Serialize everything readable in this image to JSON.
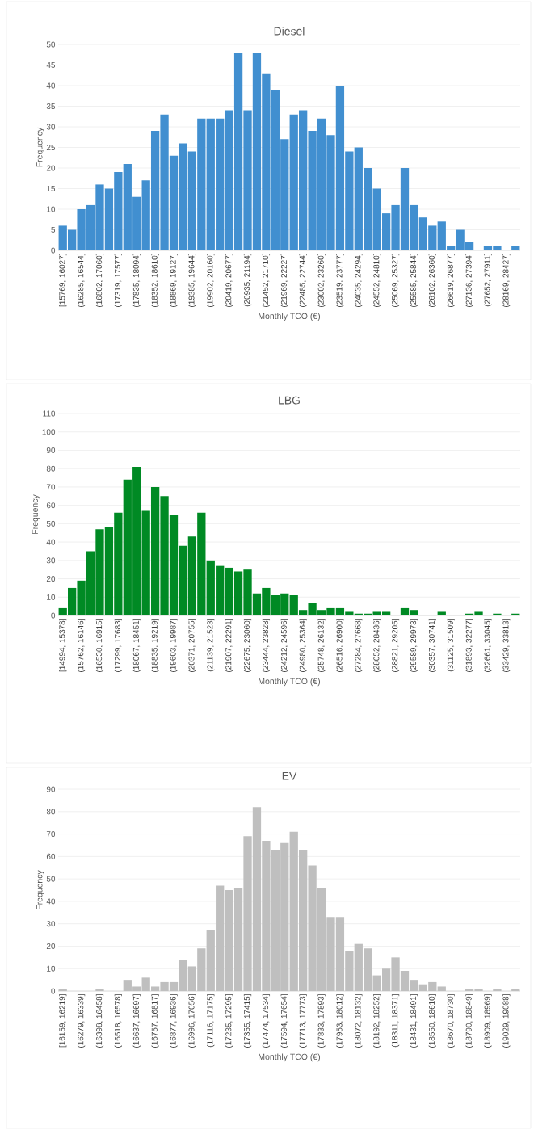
{
  "chart_data": [
    {
      "type": "bar",
      "title": "Diesel",
      "xlabel": "Monthly TCO (€)",
      "ylabel": "Frequency",
      "color": "#418fd0",
      "grid": "y",
      "ylim": [
        0,
        50
      ],
      "yticks": [
        0,
        5,
        10,
        15,
        20,
        25,
        30,
        35,
        40,
        45,
        50
      ],
      "categories": [
        "[15769, 16027]",
        null,
        "(16285, 16544]",
        null,
        "(16802, 17060]",
        null,
        "(17319, 17577]",
        null,
        "(17835, 18094]",
        null,
        "(18352, 18610]",
        null,
        "(18869, 19127]",
        null,
        "(19385, 19644]",
        null,
        "(19902, 20160]",
        null,
        "(20419, 20677]",
        null,
        "(20935, 21194]",
        null,
        "(21452, 21710]",
        null,
        "(21969, 22227]",
        null,
        "(22485, 22744]",
        null,
        "(23002, 23260]",
        null,
        "(23519, 23777]",
        null,
        "(24035, 24294]",
        null,
        "(24552, 24810]",
        null,
        "(25069, 25327]",
        null,
        "(25585, 25844]",
        null,
        "(26102, 26360]",
        null,
        "(26619, 26877]",
        null,
        "(27136, 27394]",
        null,
        "(27652, 27911]",
        null,
        "(28169, 28427]",
        null
      ],
      "values": [
        6,
        5,
        10,
        11,
        16,
        15,
        19,
        21,
        13,
        17,
        29,
        33,
        23,
        26,
        24,
        32,
        32,
        32,
        34,
        48,
        34,
        48,
        43,
        39,
        27,
        33,
        34,
        29,
        32,
        28,
        40,
        24,
        25,
        20,
        15,
        9,
        11,
        20,
        11,
        8,
        6,
        7,
        1,
        5,
        2,
        0,
        1,
        1,
        0,
        1
      ]
    },
    {
      "type": "bar",
      "title": "LBG",
      "xlabel": "Monthly TCO (€)",
      "ylabel": "Frequency",
      "color": "#008a24",
      "grid": "y",
      "ylim": [
        0,
        110
      ],
      "yticks": [
        0,
        10,
        20,
        30,
        40,
        50,
        60,
        70,
        80,
        90,
        100,
        110
      ],
      "categories": [
        "[14994, 15378]",
        null,
        "(15762, 16146]",
        null,
        "(16530, 16915]",
        null,
        "(17299, 17683]",
        null,
        "(18067, 18451]",
        null,
        "(18835, 19219]",
        null,
        "(19603, 19987]",
        null,
        "(20371, 20755]",
        null,
        "(21139, 21523]",
        null,
        "(21907, 22291]",
        null,
        "(22675, 23060]",
        null,
        "(23444, 23828]",
        null,
        "(24212, 24596]",
        null,
        "(24980, 25364]",
        null,
        "(25748, 26132]",
        null,
        "(26516, 26900]",
        null,
        "(27284, 27668]",
        null,
        "(28052, 28436]",
        null,
        "(28821, 29205]",
        null,
        "(29589, 29973]",
        null,
        "(30357, 30741]",
        null,
        "(31125, 31509]",
        null,
        "(31893, 32277]",
        null,
        "(32661, 33045]",
        null,
        "(33429, 33813]",
        null
      ],
      "values": [
        4,
        15,
        19,
        35,
        47,
        48,
        56,
        74,
        81,
        57,
        70,
        65,
        55,
        38,
        43,
        56,
        30,
        27,
        26,
        24,
        25,
        12,
        15,
        11,
        12,
        11,
        3,
        7,
        3,
        4,
        4,
        2,
        1,
        1,
        2,
        2,
        0,
        4,
        3,
        0,
        0,
        2,
        0,
        0,
        1,
        2,
        0,
        1,
        0,
        1
      ]
    },
    {
      "type": "bar",
      "title": "EV",
      "xlabel": "Monthly TCO (€)",
      "ylabel": "Frequency",
      "color": "#bfbfbf",
      "grid": "y",
      "ylim": [
        0,
        90
      ],
      "yticks": [
        0,
        10,
        20,
        30,
        40,
        50,
        60,
        70,
        80,
        90
      ],
      "categories": [
        "[16159, 16219]",
        null,
        "(16279, 16339]",
        null,
        "(16398, 16458]",
        null,
        "(16518, 16578]",
        null,
        "(16637, 16697]",
        null,
        "(16757, 16817]",
        null,
        "(16877, 16936]",
        null,
        "(16996, 17056]",
        null,
        "(17116, 17175]",
        null,
        "(17235, 17295]",
        null,
        "(17355, 17415]",
        null,
        "(17474, 17534]",
        null,
        "(17594, 17654]",
        null,
        "(17713, 17773]",
        null,
        "(17833, 17893]",
        null,
        "(17953, 18012]",
        null,
        "(18072, 18132]",
        null,
        "(18192, 18252]",
        null,
        "(18311, 18371]",
        null,
        "(18431, 18491]",
        null,
        "(18550, 18610]",
        null,
        "(18670, 18730]",
        null,
        "(18790, 18849]",
        null,
        "(18909, 18969]",
        null,
        "(19029, 19088]",
        null
      ],
      "values": [
        1,
        0,
        0,
        0,
        1,
        0,
        0,
        5,
        2,
        6,
        2,
        4,
        4,
        14,
        11,
        19,
        27,
        47,
        45,
        46,
        69,
        82,
        67,
        63,
        66,
        71,
        63,
        56,
        46,
        33,
        33,
        18,
        21,
        19,
        7,
        10,
        15,
        9,
        5,
        3,
        4,
        2,
        0,
        0,
        1,
        1,
        0,
        1,
        0,
        1
      ]
    }
  ]
}
